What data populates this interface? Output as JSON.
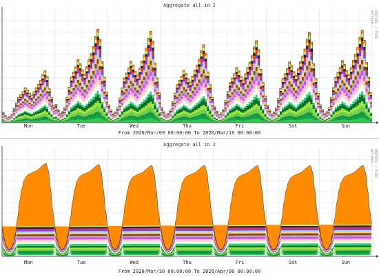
{
  "charts": [
    {
      "title": "Aggregate all in 2",
      "range_label": "From 2020/Mar/09 00:00:00 To 2020/Mar/16 00:00:00",
      "side_tag": "RRDTOOL / TOBI OETIKER",
      "chart_data": {
        "type": "area",
        "stacking": "stacked",
        "x_unit": "hours since start of week",
        "days": [
          "Mon",
          "Tue",
          "Wed",
          "Thu",
          "Fri",
          "Sat",
          "Sun"
        ],
        "x_range": [
          0,
          168
        ],
        "y_range": [
          0,
          1
        ],
        "y_ticks_labelled": false,
        "grid": true,
        "shape": "stepped",
        "daily_profile": [
          0.18,
          0.13,
          0.09,
          0.11,
          0.15,
          0.25,
          0.35,
          0.45,
          0.5,
          0.55,
          0.62,
          0.58,
          0.52,
          0.48,
          0.55,
          0.62,
          0.68,
          0.75,
          0.85,
          0.92,
          0.82,
          0.6,
          0.45,
          0.3
        ],
        "day_peaks": [
          0.5,
          0.9,
          0.88,
          0.75,
          0.79,
          0.87,
          0.89
        ],
        "layer_weights": [
          0.05,
          0.03,
          0.04,
          0.06,
          0.05,
          0.07,
          0.04,
          0.06,
          0.05,
          0.06,
          0.05,
          0.07,
          0.05,
          0.06,
          0.04,
          0.05,
          0.05,
          0.04,
          0.04,
          0.04
        ]
      }
    },
    {
      "title": "Aggregate all in 2",
      "range_label": "From 2020/Mar/30 00:00:00 To 2020/Apr/06 00:00:00",
      "side_tag": "RRDTOOL / TOBI OETIKER",
      "chart_data": {
        "type": "area",
        "stacking": "stacked",
        "x_unit": "hours since start of week",
        "days": [
          "Mon",
          "Tue",
          "Wed",
          "Thu",
          "Fri",
          "Sat",
          "Sun"
        ],
        "x_range": [
          0,
          168
        ],
        "y_range": [
          0,
          1
        ],
        "y_ticks_labelled": false,
        "grid": true,
        "shape": "smooth",
        "daily_profile": [
          0.3,
          0.18,
          0.1,
          0.07,
          0.08,
          0.12,
          0.22,
          0.38,
          0.55,
          0.68,
          0.76,
          0.8,
          0.82,
          0.83,
          0.84,
          0.85,
          0.86,
          0.88,
          0.9,
          0.92,
          0.93,
          0.86,
          0.68,
          0.46
        ],
        "day_peaks": [
          0.93,
          0.92,
          0.91,
          0.91,
          0.91,
          0.91,
          0.91
        ],
        "layer_weights": [
          0.04,
          0.03,
          0.05,
          0.06,
          0.05,
          0.06,
          0.05,
          0.07,
          0.05,
          0.06,
          0.04,
          0.06,
          0.05,
          0.06,
          0.05,
          0.05,
          0.05,
          0.04,
          0.05,
          0.03
        ]
      }
    }
  ],
  "palette": [
    "#2ecc40",
    "#00a651",
    "#1f8f3a",
    "#6fcf4a",
    "#a3e635",
    "#0b6b2e",
    "#2ad67c",
    "#ffffff",
    "#f5e6c8",
    "#f7b7d6",
    "#e040fb",
    "#b0b0b0",
    "#8b4513",
    "#ffd27a",
    "#9bd7ff",
    "#7d3cff",
    "#ff2d2d",
    "#222222",
    "#b8ff7a",
    "#ff8c00"
  ],
  "colors": {
    "plot_bg": "#ffffff",
    "grid": "#e6e6e6",
    "axis": "#555555",
    "outline": "#333333"
  }
}
